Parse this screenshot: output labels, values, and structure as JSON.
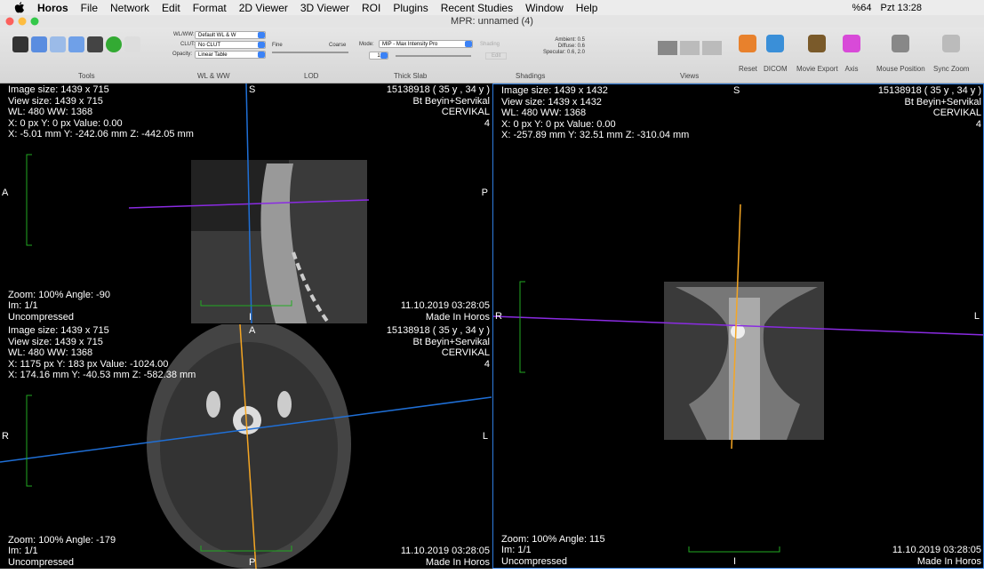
{
  "menu": {
    "app": "Horos",
    "items": [
      "File",
      "Network",
      "Edit",
      "Format",
      "2D Viewer",
      "3D Viewer",
      "ROI",
      "Plugins",
      "Recent Studies",
      "Window",
      "Help"
    ],
    "battery": "%64",
    "clock": "Pzt 13:28"
  },
  "window_title": "MPR: unnamed (4)",
  "toolbar": {
    "wl_label": "WL/WW:",
    "wl_value": "Default WL & W",
    "clut_label": "CLUT:",
    "clut_value": "No CLUT",
    "opacity_label": "Opacity:",
    "opacity_value": "Linear Table",
    "fine": "Fine",
    "coarse": "Coarse",
    "mode_label": "Mode:",
    "mode_value": "MIP - Max Intensity Pro",
    "shading": "Shading",
    "slab_value": "1",
    "edit": "Edit",
    "shading_params": [
      "Ambient: 0.5",
      "Diffuse: 0.6",
      "Specular: 0.6, 2.0"
    ],
    "sections": [
      "Tools",
      "WL & WW",
      "LOD",
      "Thick Slab",
      "Shadings",
      "Views"
    ],
    "buttons": [
      "Reset",
      "DICOM",
      "Movie Export",
      "Axis",
      "Mouse Position",
      "Sync Zoom"
    ]
  },
  "panels": [
    {
      "top_left": [
        "Image size: 1439 x 715",
        "View size: 1439 x 715",
        "WL: 480 WW: 1368",
        "X: 0 px Y: 0 px Value: 0.00",
        "X: -5.01 mm Y: -242.06 mm Z: -442.05 mm"
      ],
      "top_right": [
        "15138918 ( 35 y , 34 y )",
        "Bt Beyin+Servikal",
        "CERVIKAL",
        "4"
      ],
      "bottom_left": [
        "Zoom: 100% Angle: -90",
        "Im: 1/1",
        "Uncompressed"
      ],
      "bottom_right": [
        "11.10.2019 03:28:05",
        "Made In Horos"
      ],
      "orientation": {
        "top": "S",
        "left": "A",
        "right": "P",
        "bottom": "I"
      }
    },
    {
      "top_left": [
        "Image size: 1439 x 715",
        "View size: 1439 x 715",
        "WL: 480 WW: 1368",
        "X: 1175 px Y: 183 px Value: -1024.00",
        "X: 174.16 mm Y: -40.53 mm Z: -582.38 mm"
      ],
      "top_right": [
        "15138918 ( 35 y , 34 y )",
        "Bt Beyin+Servikal",
        "CERVIKAL",
        "4"
      ],
      "bottom_left": [
        "Zoom: 100% Angle: -179",
        "Im: 1/1",
        "Uncompressed"
      ],
      "bottom_right": [
        "11.10.2019 03:28:05",
        "Made In Horos"
      ],
      "orientation": {
        "top": "A",
        "left": "R",
        "right": "L",
        "bottom": "P"
      }
    },
    {
      "top_left": [
        "Image size: 1439 x 1432",
        "View size: 1439 x 1432",
        "WL: 480 WW: 1368",
        "X: 0 px Y: 0 px Value: 0.00",
        "X: -257.89 mm Y: 32.51 mm Z: -310.04 mm"
      ],
      "top_right": [
        "15138918 ( 35 y , 34 y )",
        "Bt Beyin+Servikal",
        "CERVIKAL",
        "4"
      ],
      "bottom_left": [
        "Zoom: 100% Angle: 115",
        "Im: 1/1",
        "Uncompressed"
      ],
      "bottom_right": [
        "11.10.2019 03:28:05",
        "Made In Horos"
      ],
      "orientation": {
        "top": "S",
        "left": "R",
        "right": "L",
        "bottom": "I"
      }
    }
  ]
}
